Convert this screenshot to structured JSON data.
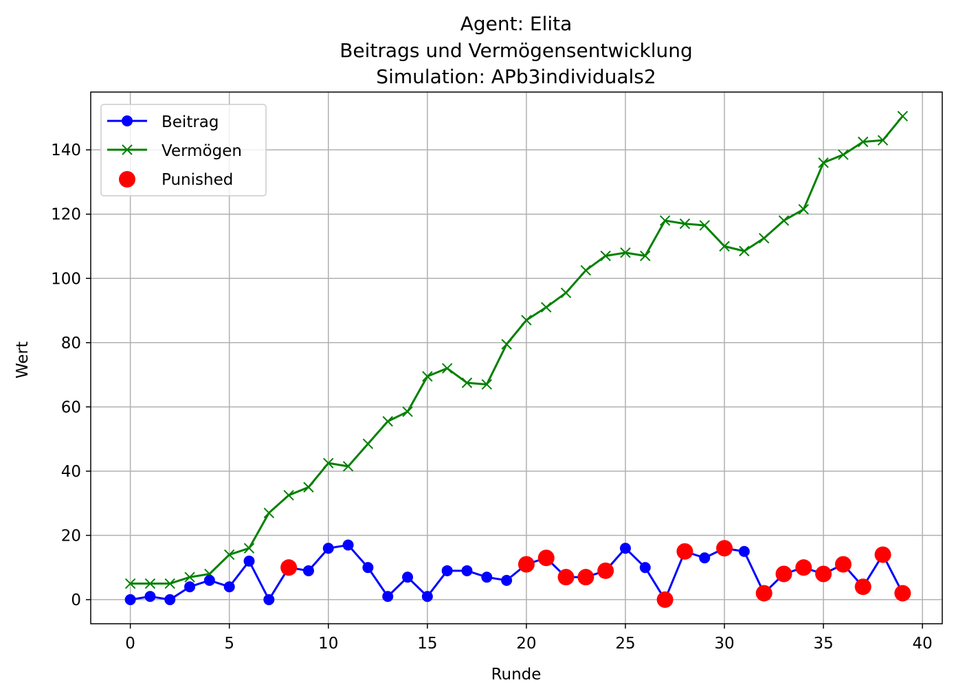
{
  "chart_data": {
    "type": "line",
    "title_lines": [
      "Agent: Elita",
      "Beitrags und Vermögensentwicklung",
      "Simulation: APb3individuals2"
    ],
    "xlabel": "Runde",
    "ylabel": "Wert",
    "xlim": [
      -2,
      41
    ],
    "ylim": [
      -7.5,
      158
    ],
    "xticks": [
      0,
      5,
      10,
      15,
      20,
      25,
      30,
      35,
      40
    ],
    "yticks": [
      0,
      20,
      40,
      60,
      80,
      100,
      120,
      140
    ],
    "grid": true,
    "legend_position": "upper-left",
    "x": [
      0,
      1,
      2,
      3,
      4,
      5,
      6,
      7,
      8,
      9,
      10,
      11,
      12,
      13,
      14,
      15,
      16,
      17,
      18,
      19,
      20,
      21,
      22,
      23,
      24,
      25,
      26,
      27,
      28,
      29,
      30,
      31,
      32,
      33,
      34,
      35,
      36,
      37,
      38,
      39
    ],
    "series": [
      {
        "name": "Beitrag",
        "color": "#0000ff",
        "marker": "circle",
        "values": [
          0,
          1,
          0,
          4,
          6,
          4,
          12,
          0,
          10,
          9,
          16,
          17,
          10,
          1,
          7,
          1,
          9,
          9,
          7,
          6,
          11,
          13,
          7,
          7,
          9,
          16,
          10,
          0,
          15,
          13,
          16,
          15,
          2,
          8,
          10,
          8,
          11,
          4,
          14,
          2
        ]
      },
      {
        "name": "Vermögen",
        "color": "#008000",
        "marker": "x",
        "values": [
          5,
          5,
          5,
          7,
          8,
          14,
          16,
          27,
          32.5,
          35,
          42.5,
          41.5,
          48.5,
          55.5,
          58.5,
          69.5,
          72,
          67.5,
          67,
          79.5,
          87,
          91,
          95.5,
          102.5,
          107,
          108,
          107,
          118,
          117,
          116.5,
          110,
          108.5,
          112.5,
          118,
          121.5,
          136,
          138.5,
          142.5,
          143,
          150.5
        ]
      },
      {
        "name": "Punished",
        "color": "#ff0000",
        "marker": "big-circle",
        "points": [
          {
            "x": 8,
            "y": 10
          },
          {
            "x": 20,
            "y": 11
          },
          {
            "x": 21,
            "y": 13
          },
          {
            "x": 22,
            "y": 7
          },
          {
            "x": 23,
            "y": 7
          },
          {
            "x": 24,
            "y": 9
          },
          {
            "x": 27,
            "y": 0
          },
          {
            "x": 28,
            "y": 15
          },
          {
            "x": 30,
            "y": 16
          },
          {
            "x": 32,
            "y": 2
          },
          {
            "x": 33,
            "y": 8
          },
          {
            "x": 34,
            "y": 10
          },
          {
            "x": 35,
            "y": 8
          },
          {
            "x": 36,
            "y": 11
          },
          {
            "x": 37,
            "y": 4
          },
          {
            "x": 38,
            "y": 14
          },
          {
            "x": 39,
            "y": 2
          }
        ]
      }
    ]
  }
}
